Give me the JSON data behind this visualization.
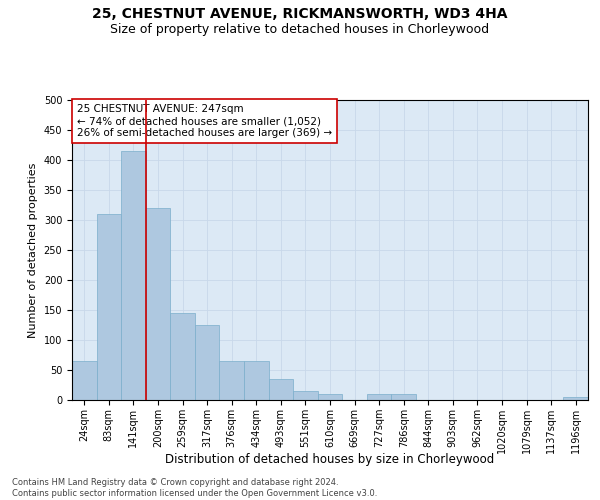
{
  "title1": "25, CHESTNUT AVENUE, RICKMANSWORTH, WD3 4HA",
  "title2": "Size of property relative to detached houses in Chorleywood",
  "xlabel": "Distribution of detached houses by size in Chorleywood",
  "ylabel": "Number of detached properties",
  "footer1": "Contains HM Land Registry data © Crown copyright and database right 2024.",
  "footer2": "Contains public sector information licensed under the Open Government Licence v3.0.",
  "bin_labels": [
    "24sqm",
    "83sqm",
    "141sqm",
    "200sqm",
    "259sqm",
    "317sqm",
    "376sqm",
    "434sqm",
    "493sqm",
    "551sqm",
    "610sqm",
    "669sqm",
    "727sqm",
    "786sqm",
    "844sqm",
    "903sqm",
    "962sqm",
    "1020sqm",
    "1079sqm",
    "1137sqm",
    "1196sqm"
  ],
  "bar_values": [
    65,
    310,
    415,
    320,
    145,
    125,
    65,
    65,
    35,
    15,
    10,
    0,
    10,
    10,
    0,
    0,
    0,
    0,
    0,
    0,
    5
  ],
  "bar_color": "#aec8e0",
  "bar_edge_color": "#7aaecb",
  "grid_color": "#c8d8ea",
  "background_color": "#dce9f5",
  "vline_color": "#cc0000",
  "vline_position": 2.5,
  "annotation_text": "25 CHESTNUT AVENUE: 247sqm\n← 74% of detached houses are smaller (1,052)\n26% of semi-detached houses are larger (369) →",
  "annotation_box_color": "#ffffff",
  "annotation_box_edge": "#cc0000",
  "ylim": [
    0,
    500
  ],
  "yticks": [
    0,
    50,
    100,
    150,
    200,
    250,
    300,
    350,
    400,
    450,
    500
  ],
  "title1_fontsize": 10,
  "title2_fontsize": 9,
  "xlabel_fontsize": 8.5,
  "ylabel_fontsize": 8,
  "tick_fontsize": 7,
  "annotation_fontsize": 7.5,
  "footer_fontsize": 6
}
